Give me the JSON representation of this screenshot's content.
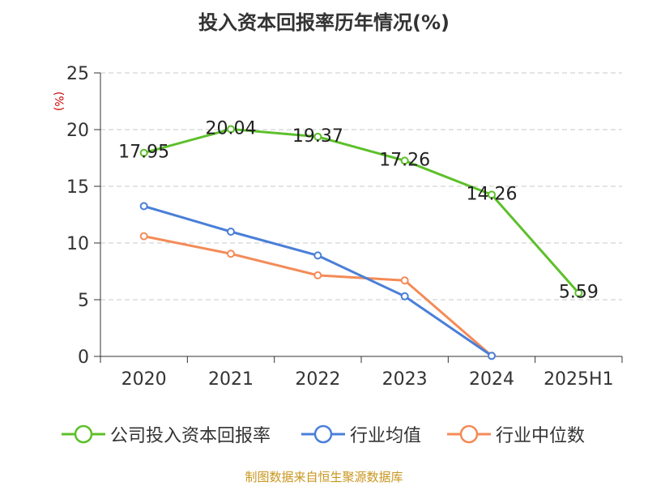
{
  "chart_data": {
    "type": "line",
    "title": "投入资本回报率历年情况(%)",
    "ylabel": "(%)",
    "xlabel": "",
    "categories": [
      "2020",
      "2021",
      "2022",
      "2023",
      "2024",
      "2025H1"
    ],
    "ylim": [
      0,
      25
    ],
    "yticks": [
      0,
      5,
      10,
      15,
      20,
      25
    ],
    "grid": true,
    "legend_position": "bottom",
    "series": [
      {
        "name": "公司投入资本回报率",
        "color": "#5cc02a",
        "values": [
          17.95,
          20.04,
          19.37,
          17.26,
          14.26,
          5.59
        ],
        "labels": [
          "17.95",
          "20.04",
          "19.37",
          "17.26",
          "14.26",
          "5.59"
        ]
      },
      {
        "name": "行业均值",
        "color": "#4a7fd8",
        "values": [
          13.25,
          11.0,
          8.9,
          5.3,
          0.05,
          null
        ],
        "labels": []
      },
      {
        "name": "行业中位数",
        "color": "#f48b57",
        "values": [
          10.6,
          9.05,
          7.15,
          6.7,
          0.05,
          null
        ],
        "labels": []
      }
    ]
  },
  "footer": {
    "source": "制图数据来自恒生聚源数据库"
  }
}
